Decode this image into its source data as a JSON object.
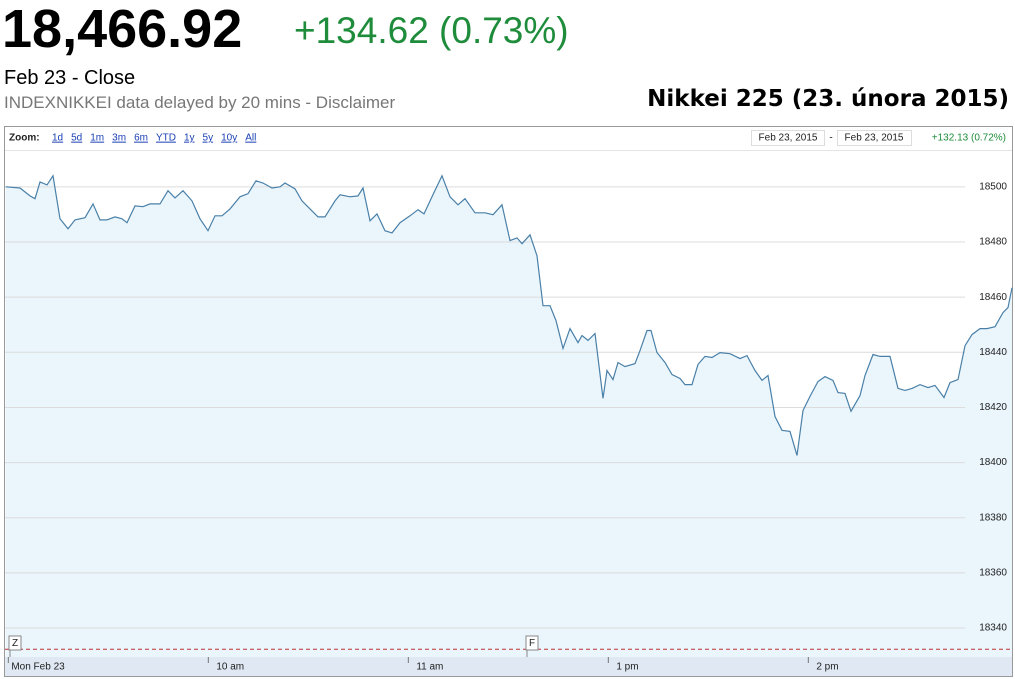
{
  "header": {
    "price": "18,466.92",
    "change": "+134.62 (0.73%)",
    "close_label": "Feb 23 - Close",
    "delay_note": "INDEXNIKKEI data delayed by 20 mins - Disclaimer"
  },
  "toolbar": {
    "zoom_label": "Zoom:",
    "zoom_options": [
      "1d",
      "5d",
      "1m",
      "3m",
      "6m",
      "YTD",
      "1y",
      "5y",
      "10y",
      "All"
    ],
    "range_start": "Feb 23, 2015",
    "range_separator": "-",
    "range_end": "Feb 23, 2015",
    "range_change": "+132.13 (0.72%)"
  },
  "chart_data": {
    "type": "area",
    "title": "Nikkei 225 (23. února 2015)",
    "color": "#4a80a8",
    "fill_color": "#eaf5fc",
    "x": [
      -0.8,
      3.5,
      6.5,
      8,
      9.5,
      11.6,
      13.4,
      15.5,
      17.9,
      20,
      23,
      25.4,
      27.5,
      29.6,
      32,
      34.1,
      35.6,
      38,
      40.4,
      42.5,
      45.5,
      47.9,
      50,
      52.4,
      55.1,
      57.5,
      59.9,
      62,
      64.1,
      66.5,
      69.5,
      71.9,
      74.3,
      76.4,
      79.1,
      81.5,
      83,
      86,
      88.1,
      90.5,
      92.9,
      95,
      98,
      99.5,
      102.5,
      104.9,
      106.4,
      108.5,
      110.6,
      113,
      115.1,
      117.5,
      120.5,
      122.9,
      124.7,
      127.1,
      130.1,
      132.5,
      134.9,
      137,
      140,
      143,
      145.4,
      148.1,
      150.5,
      152.6,
      154.1,
      156.5,
      158.6,
      160.4,
      162.5,
      164.3,
      166.4,
      168.5,
      170.9,
      172.1,
      173.9,
      176,
      178.4,
      179.6,
      181.4,
      182.9,
      185,
      188,
      189.5,
      191.6,
      192.8,
      194.6,
      197,
      199.1,
      201.5,
      203,
      205.1,
      206.9,
      209,
      211.1,
      213.5,
      216.5,
      219.5,
      221.6,
      224,
      226.1,
      227.9,
      230,
      232.1,
      234.5,
      236.6,
      238.4,
      240.5,
      242.9,
      245,
      247.4,
      248.9,
      251,
      252.8,
      255.5,
      257,
      259.4,
      261.5,
      264.5,
      266.9,
      269,
      271.1,
      273.5,
      275.9,
      278,
      280.7,
      282.5,
      284.9,
      287,
      289.1,
      291.5,
      293.6,
      296,
      298.4,
      299.9,
      301.1
    ],
    "values": [
      18500,
      18499.6,
      18496.7,
      18495.7,
      18501.8,
      18500.7,
      18504,
      18488.4,
      18484.8,
      18488,
      18488.8,
      18493.8,
      18488,
      18488,
      18489.1,
      18488.4,
      18487,
      18493.1,
      18492.8,
      18493.8,
      18493.8,
      18498.6,
      18496,
      18498.6,
      18494.9,
      18488.4,
      18484.1,
      18489.5,
      18489.5,
      18492,
      18496.4,
      18497.5,
      18502.2,
      18501.4,
      18499.6,
      18500,
      18501.4,
      18499.3,
      18494.9,
      18492,
      18489.1,
      18489.1,
      18494.9,
      18497.1,
      18496.4,
      18496.7,
      18499.6,
      18487.7,
      18490.2,
      18484.1,
      18483.3,
      18487,
      18489.5,
      18491.7,
      18490.2,
      18496.4,
      18504,
      18496.4,
      18493.5,
      18495.7,
      18490.6,
      18490.6,
      18489.9,
      18493.5,
      18480.5,
      18481.5,
      18479.4,
      18482.6,
      18475,
      18456.9,
      18456.9,
      18451.5,
      18441.4,
      18448.6,
      18443.5,
      18446.1,
      18444.3,
      18446.8,
      18423.3,
      18433.4,
      18430.1,
      18436.3,
      18434.8,
      18435.9,
      18440.6,
      18447.9,
      18447.9,
      18439.9,
      18436.3,
      18431.9,
      18430.5,
      18428.3,
      18428.3,
      18435.6,
      18438.5,
      18438.1,
      18439.9,
      18439.5,
      18437.7,
      18438.8,
      18433.4,
      18429.8,
      18431.6,
      18416.7,
      18411.7,
      18411.3,
      18402.6,
      18418.9,
      18424,
      18429.4,
      18431.2,
      18429.8,
      18425.4,
      18425.1,
      18418.6,
      18424.3,
      18431.6,
      18439.2,
      18438.5,
      18438.5,
      18426.9,
      18426.2,
      18426.9,
      18428.3,
      18427.2,
      18428,
      18423.6,
      18429,
      18430.1,
      18442.4,
      18446.4,
      18448.6,
      18448.6,
      18449.3,
      18454.4,
      18456.2,
      18463.4
    ],
    "xlim": [
      -1,
      301.1
    ],
    "xticks": [
      {
        "value": 0,
        "label": "Mon Feb 23"
      },
      {
        "value": 60,
        "label": "10 am"
      },
      {
        "value": 120,
        "label": "11 am"
      },
      {
        "value": 180,
        "label": "1 pm"
      },
      {
        "value": 240,
        "label": "2 pm"
      }
    ],
    "ylim": [
      18329.5,
      18513
    ],
    "yticks": [
      18340,
      18360,
      18380,
      18400,
      18420,
      18440,
      18460,
      18480,
      18500
    ],
    "grid": true,
    "previous_close": 18332.3,
    "annotations": [
      {
        "text": "Z",
        "x": 0.5
      },
      {
        "text": "F",
        "x": 155.6
      }
    ]
  }
}
